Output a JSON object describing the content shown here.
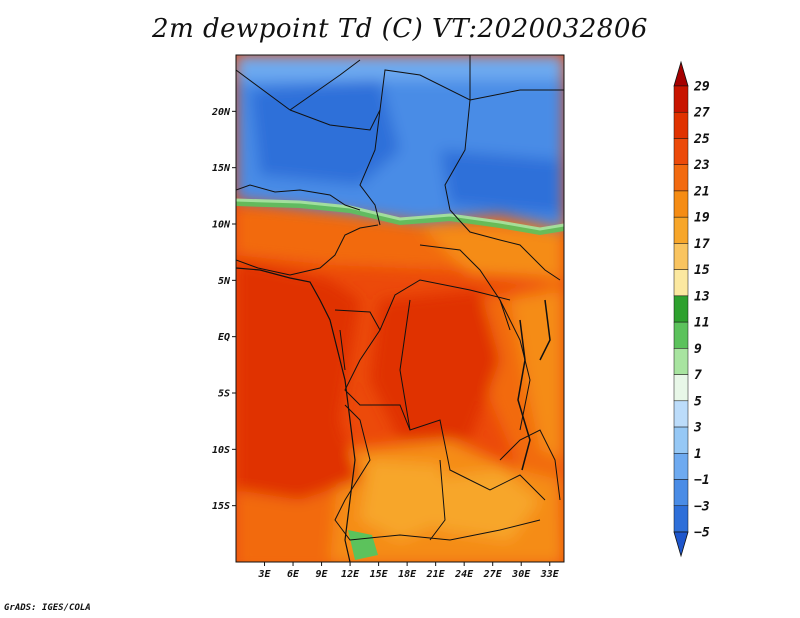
{
  "title": "2m dewpoint Td (C) VT:2020032806",
  "footer": "GrADS: IGES/COLA",
  "map": {
    "lon_range": [
      0,
      34.5
    ],
    "lat_range": [
      -20,
      25
    ],
    "lat_ticks": [
      {
        "value": 20,
        "label": "20N"
      },
      {
        "value": 15,
        "label": "15N"
      },
      {
        "value": 10,
        "label": "10N"
      },
      {
        "value": 5,
        "label": "5N"
      },
      {
        "value": 0,
        "label": "EQ"
      },
      {
        "value": -5,
        "label": "5S"
      },
      {
        "value": -10,
        "label": "10S"
      },
      {
        "value": -15,
        "label": "15S"
      }
    ],
    "lon_ticks": [
      {
        "value": 3,
        "label": "3E"
      },
      {
        "value": 6,
        "label": "6E"
      },
      {
        "value": 9,
        "label": "9E"
      },
      {
        "value": 12,
        "label": "12E"
      },
      {
        "value": 15,
        "label": "15E"
      },
      {
        "value": 18,
        "label": "18E"
      },
      {
        "value": 21,
        "label": "21E"
      },
      {
        "value": 24,
        "label": "24E"
      },
      {
        "value": 27,
        "label": "27E"
      },
      {
        "value": 30,
        "label": "30E"
      },
      {
        "value": 33,
        "label": "33E"
      }
    ]
  },
  "colorbar": {
    "labels": [
      "29",
      "27",
      "25",
      "23",
      "21",
      "19",
      "17",
      "15",
      "13",
      "11",
      "9",
      "7",
      "5",
      "3",
      "1",
      "−1",
      "−3",
      "−5"
    ],
    "colors": [
      "#a50000",
      "#c81400",
      "#e03200",
      "#ec4a0a",
      "#f26a10",
      "#f58c14",
      "#f7a62a",
      "#f9c460",
      "#fbe8a0",
      "#2ea12e",
      "#5cc25c",
      "#a8e4a0",
      "#e8f7e8",
      "#bcdcfa",
      "#96c8f5",
      "#6eaaf0",
      "#4a8ce6",
      "#2e6fd9",
      "#1e56cc"
    ]
  },
  "field_colors": {
    "deep_blue": "#2e6fd9",
    "mid_blue": "#4a8ce6",
    "light_blue": "#6eaaf0",
    "green": "#5cc25c",
    "red": "#e03200",
    "orange_red": "#ec4a0a",
    "orange": "#f26a10",
    "light_orange": "#f58c14",
    "tan": "#f7a62a"
  }
}
